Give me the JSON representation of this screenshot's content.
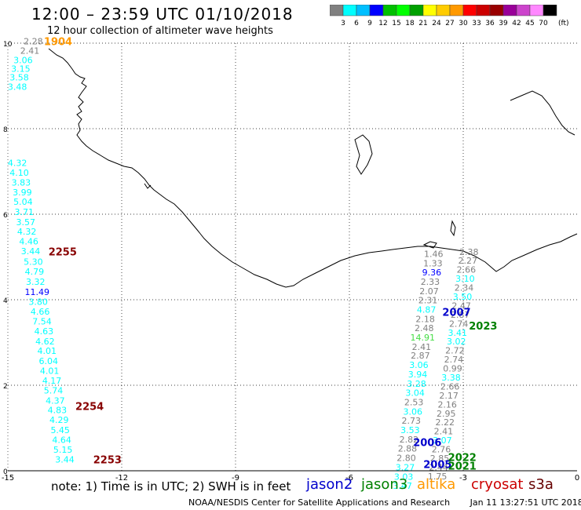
{
  "header": {
    "title": "12:00 – 23:59 UTC 01/10/2018",
    "subtitle": "12 hour collection of altimeter wave heights"
  },
  "colorbar": {
    "unit": "(ft)",
    "colors": [
      "#808080",
      "#00ffff",
      "#00bfff",
      "#0000ff",
      "#00c000",
      "#00ff00",
      "#00a000",
      "#ffff00",
      "#ffcc00",
      "#ff9900",
      "#ff0000",
      "#cc0000",
      "#990000",
      "#990099",
      "#cc44cc",
      "#ff88ff",
      "#000000"
    ],
    "labels": [
      "3",
      "6",
      "9",
      "12",
      "15",
      "18",
      "21",
      "24",
      "27",
      "30",
      "33",
      "36",
      "39",
      "42",
      "45",
      "70"
    ]
  },
  "axes": {
    "x_ticks": [
      "-15",
      "-12",
      "-9",
      "-6",
      "-3",
      "0"
    ],
    "y_ticks": [
      "0",
      "2",
      "4",
      "6",
      "8",
      "10"
    ],
    "xlim": [
      -15,
      0
    ],
    "ylim": [
      0,
      10
    ]
  },
  "chart_data": {
    "type": "scatter",
    "points": [
      {
        "x": -14.33,
        "y": 9.97,
        "v": "2.28",
        "c": "#808080"
      },
      {
        "x": -14.42,
        "y": 9.75,
        "v": "2.41",
        "c": "#808080"
      },
      {
        "x": -14.6,
        "y": 9.53,
        "v": "3.06",
        "c": "#00ffff"
      },
      {
        "x": -14.66,
        "y": 9.33,
        "v": "3.15",
        "c": "#00ffff"
      },
      {
        "x": -14.7,
        "y": 9.13,
        "v": "3.58",
        "c": "#00ffff"
      },
      {
        "x": -14.75,
        "y": 8.91,
        "v": "3.48",
        "c": "#00ffff"
      },
      {
        "x": -14.75,
        "y": 7.13,
        "v": "4.32",
        "c": "#00ffff"
      },
      {
        "x": -14.7,
        "y": 6.9,
        "v": "4.10",
        "c": "#00ffff"
      },
      {
        "x": -14.65,
        "y": 6.67,
        "v": "3.83",
        "c": "#00ffff"
      },
      {
        "x": -14.62,
        "y": 6.44,
        "v": "3.99",
        "c": "#00ffff"
      },
      {
        "x": -14.6,
        "y": 6.22,
        "v": "5.04",
        "c": "#00ffff"
      },
      {
        "x": -14.57,
        "y": 5.98,
        "v": "3.71",
        "c": "#00ffff"
      },
      {
        "x": -14.53,
        "y": 5.74,
        "v": "3.57",
        "c": "#00ffff"
      },
      {
        "x": -14.5,
        "y": 5.52,
        "v": "4.32",
        "c": "#00ffff"
      },
      {
        "x": -14.45,
        "y": 5.29,
        "v": "4.46",
        "c": "#00ffff"
      },
      {
        "x": -14.4,
        "y": 5.06,
        "v": "3.44",
        "c": "#00ffff"
      },
      {
        "x": -14.33,
        "y": 4.82,
        "v": "5.30",
        "c": "#00ffff"
      },
      {
        "x": -14.3,
        "y": 4.59,
        "v": "4.79",
        "c": "#00ffff"
      },
      {
        "x": -14.27,
        "y": 4.35,
        "v": "3.32",
        "c": "#00ffff"
      },
      {
        "x": -14.23,
        "y": 4.11,
        "v": "11.49",
        "c": "#0000ff"
      },
      {
        "x": -14.2,
        "y": 3.88,
        "v": "3.80",
        "c": "#00ffff"
      },
      {
        "x": -14.15,
        "y": 3.65,
        "v": "4.66",
        "c": "#00ffff"
      },
      {
        "x": -14.1,
        "y": 3.42,
        "v": "7.54",
        "c": "#00ffff"
      },
      {
        "x": -14.05,
        "y": 3.19,
        "v": "4.63",
        "c": "#00ffff"
      },
      {
        "x": -14.02,
        "y": 2.95,
        "v": "4.62",
        "c": "#00ffff"
      },
      {
        "x": -13.97,
        "y": 2.73,
        "v": "4.01",
        "c": "#00ffff"
      },
      {
        "x": -13.93,
        "y": 2.5,
        "v": "6.04",
        "c": "#00ffff"
      },
      {
        "x": -13.9,
        "y": 2.27,
        "v": "4.01",
        "c": "#00ffff"
      },
      {
        "x": -13.84,
        "y": 2.04,
        "v": "4.17",
        "c": "#00ffff"
      },
      {
        "x": -13.8,
        "y": 1.81,
        "v": "5.74",
        "c": "#00ffff"
      },
      {
        "x": -13.75,
        "y": 1.57,
        "v": "4.37",
        "c": "#00ffff"
      },
      {
        "x": -13.7,
        "y": 1.35,
        "v": "4.83",
        "c": "#00ffff"
      },
      {
        "x": -13.65,
        "y": 1.12,
        "v": "4.29",
        "c": "#00ffff"
      },
      {
        "x": -13.62,
        "y": 0.88,
        "v": "5.45",
        "c": "#00ffff"
      },
      {
        "x": -13.58,
        "y": 0.65,
        "v": "4.64",
        "c": "#00ffff"
      },
      {
        "x": -13.55,
        "y": 0.42,
        "v": "5.15",
        "c": "#00ffff"
      },
      {
        "x": -13.5,
        "y": 0.19,
        "v": "3.44",
        "c": "#00ffff"
      },
      {
        "x": -3.78,
        "y": 5.0,
        "v": "1.46",
        "c": "#808080"
      },
      {
        "x": -3.8,
        "y": 4.78,
        "v": "1.33",
        "c": "#808080"
      },
      {
        "x": -3.83,
        "y": 4.57,
        "v": "9.36",
        "c": "#0000ff"
      },
      {
        "x": -3.87,
        "y": 4.35,
        "v": "2.33",
        "c": "#808080"
      },
      {
        "x": -3.9,
        "y": 4.13,
        "v": "2.07",
        "c": "#808080"
      },
      {
        "x": -3.93,
        "y": 3.92,
        "v": "2.31",
        "c": "#808080"
      },
      {
        "x": -3.97,
        "y": 3.7,
        "v": "4.87",
        "c": "#00ffff"
      },
      {
        "x": -4.0,
        "y": 3.48,
        "v": "2.18",
        "c": "#808080"
      },
      {
        "x": -4.03,
        "y": 3.27,
        "v": "2.48",
        "c": "#808080"
      },
      {
        "x": -4.07,
        "y": 3.05,
        "v": "14.91",
        "c": "#44dd44"
      },
      {
        "x": -4.1,
        "y": 2.83,
        "v": "2.41",
        "c": "#808080"
      },
      {
        "x": -4.13,
        "y": 2.62,
        "v": "2.87",
        "c": "#808080"
      },
      {
        "x": -4.17,
        "y": 2.4,
        "v": "3.06",
        "c": "#00ffff"
      },
      {
        "x": -4.2,
        "y": 2.18,
        "v": "3.94",
        "c": "#00ffff"
      },
      {
        "x": -4.23,
        "y": 1.96,
        "v": "3.28",
        "c": "#00ffff"
      },
      {
        "x": -4.27,
        "y": 1.75,
        "v": "3.04",
        "c": "#00ffff"
      },
      {
        "x": -4.3,
        "y": 1.53,
        "v": "2.53",
        "c": "#808080"
      },
      {
        "x": -4.33,
        "y": 1.31,
        "v": "3.06",
        "c": "#00ffff"
      },
      {
        "x": -4.37,
        "y": 1.1,
        "v": "2.73",
        "c": "#808080"
      },
      {
        "x": -4.4,
        "y": 0.88,
        "v": "3.53",
        "c": "#00ffff"
      },
      {
        "x": -4.43,
        "y": 0.66,
        "v": "2.82",
        "c": "#808080"
      },
      {
        "x": -4.47,
        "y": 0.45,
        "v": "2.88",
        "c": "#808080"
      },
      {
        "x": -4.5,
        "y": 0.23,
        "v": "2.80",
        "c": "#808080"
      },
      {
        "x": -4.53,
        "y": 0.01,
        "v": "3.27",
        "c": "#00ffff"
      },
      {
        "x": -4.57,
        "y": -0.21,
        "v": "3.03",
        "c": "#00ffff"
      },
      {
        "x": -4.6,
        "y": -0.42,
        "v": "3.47",
        "c": "#00ffff"
      },
      {
        "x": -2.85,
        "y": 5.05,
        "v": "2.38",
        "c": "#808080"
      },
      {
        "x": -2.88,
        "y": 4.84,
        "v": "2.27",
        "c": "#808080"
      },
      {
        "x": -2.92,
        "y": 4.63,
        "v": "2.66",
        "c": "#808080"
      },
      {
        "x": -2.95,
        "y": 4.42,
        "v": "3.10",
        "c": "#00ffff"
      },
      {
        "x": -2.98,
        "y": 4.21,
        "v": "2.34",
        "c": "#808080"
      },
      {
        "x": -3.02,
        "y": 4.0,
        "v": "3.50",
        "c": "#00ffff"
      },
      {
        "x": -3.05,
        "y": 3.79,
        "v": "2.47",
        "c": "#808080"
      },
      {
        "x": -3.08,
        "y": 3.58,
        "v": "2.87",
        "c": "#808080"
      },
      {
        "x": -3.12,
        "y": 3.37,
        "v": "2.74",
        "c": "#808080"
      },
      {
        "x": -3.15,
        "y": 3.16,
        "v": "3.41",
        "c": "#00ffff"
      },
      {
        "x": -3.18,
        "y": 2.95,
        "v": "3.02",
        "c": "#00ffff"
      },
      {
        "x": -3.22,
        "y": 2.74,
        "v": "2.72",
        "c": "#808080"
      },
      {
        "x": -3.25,
        "y": 2.53,
        "v": "2.74",
        "c": "#808080"
      },
      {
        "x": -3.28,
        "y": 2.32,
        "v": "0.99",
        "c": "#808080"
      },
      {
        "x": -3.32,
        "y": 2.11,
        "v": "3.38",
        "c": "#00ffff"
      },
      {
        "x": -3.35,
        "y": 1.9,
        "v": "2.66",
        "c": "#808080"
      },
      {
        "x": -3.38,
        "y": 1.69,
        "v": "2.17",
        "c": "#808080"
      },
      {
        "x": -3.42,
        "y": 1.48,
        "v": "2.16",
        "c": "#808080"
      },
      {
        "x": -3.45,
        "y": 1.27,
        "v": "2.95",
        "c": "#808080"
      },
      {
        "x": -3.48,
        "y": 1.06,
        "v": "2.22",
        "c": "#808080"
      },
      {
        "x": -3.52,
        "y": 0.85,
        "v": "2.41",
        "c": "#808080"
      },
      {
        "x": -3.55,
        "y": 0.64,
        "v": "3.07",
        "c": "#00ffff"
      },
      {
        "x": -3.58,
        "y": 0.43,
        "v": "2.76",
        "c": "#808080"
      },
      {
        "x": -3.62,
        "y": 0.22,
        "v": "2.85",
        "c": "#808080"
      },
      {
        "x": -3.65,
        "y": 0.01,
        "v": "2.44",
        "c": "#808080"
      },
      {
        "x": -3.68,
        "y": -0.2,
        "v": "1.75",
        "c": "#808080"
      }
    ],
    "time_labels": [
      {
        "x": -14.05,
        "y": 9.95,
        "t": "1904",
        "c": "#ff9900"
      },
      {
        "x": -13.93,
        "y": 5.04,
        "t": "2255",
        "c": "#880000"
      },
      {
        "x": -13.22,
        "y": 1.42,
        "t": "2254",
        "c": "#880000"
      },
      {
        "x": -12.75,
        "y": 0.17,
        "t": "2253",
        "c": "#880000"
      },
      {
        "x": -3.55,
        "y": 3.62,
        "t": "2007",
        "c": "#0000cc"
      },
      {
        "x": -2.85,
        "y": 3.3,
        "t": "2023",
        "c": "#008000"
      },
      {
        "x": -4.32,
        "y": 0.58,
        "t": "2006",
        "c": "#0000cc"
      },
      {
        "x": -4.05,
        "y": 0.06,
        "t": "2005",
        "c": "#0000cc"
      },
      {
        "x": -3.4,
        "y": 0.03,
        "t": "2021",
        "c": "#008000"
      },
      {
        "x": -3.4,
        "y": 0.23,
        "t": "2022",
        "c": "#008000"
      }
    ]
  },
  "footer": {
    "note": "note: 1) Time is in UTC; 2) SWH is in feet",
    "credit": "NOAA/NESDIS Center for Satellite Applications and Research",
    "timestamp": "Jan 11 13:27:51 UTC 2018"
  },
  "legend": [
    {
      "label": "jason2",
      "color": "#0000cc"
    },
    {
      "label": "jason3",
      "color": "#008000"
    },
    {
      "label": "altika",
      "color": "#ff9900"
    },
    {
      "label": "cryosat",
      "color": "#cc0000"
    },
    {
      "label": "s3a",
      "color": "#660000"
    }
  ]
}
